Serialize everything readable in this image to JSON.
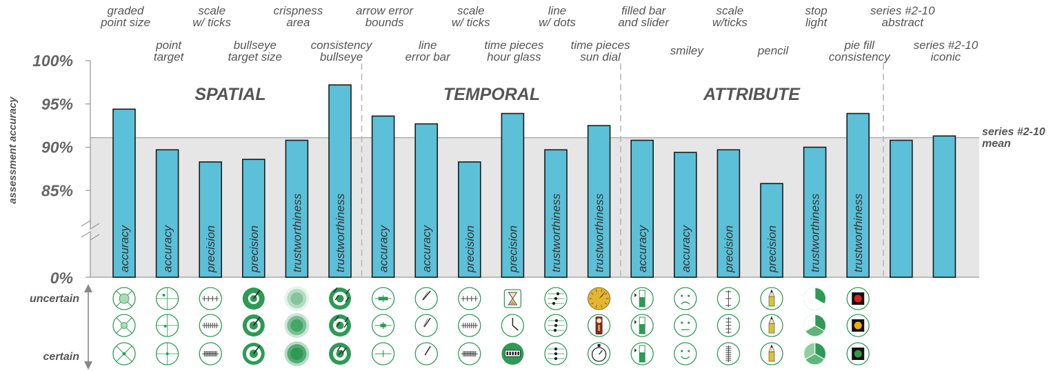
{
  "chart_data": {
    "type": "bar",
    "ylabel": "assessment accuracy",
    "y_ticks": [
      "100%",
      "95%",
      "90%",
      "85%",
      "0%"
    ],
    "ylim": [
      80,
      100
    ],
    "axis_break": true,
    "sections": [
      "SPATIAL",
      "TEMPORAL",
      "ATTRIBUTE"
    ],
    "mean": {
      "value": 91.1,
      "label_lines": [
        "series #2-10",
        "mean"
      ]
    },
    "row_labels": {
      "top": "uncertain",
      "bottom": "certain"
    },
    "bars": [
      {
        "top": [
          "graded",
          "point size"
        ],
        "value": 94.4,
        "metric": "accuracy",
        "section": "SPATIAL"
      },
      {
        "top": [
          "point",
          "target"
        ],
        "value": 89.7,
        "metric": "accuracy",
        "section": "SPATIAL"
      },
      {
        "top": [
          "scale",
          "w/ ticks"
        ],
        "value": 88.3,
        "metric": "precision",
        "section": "SPATIAL"
      },
      {
        "top": [
          "bullseye",
          "target size"
        ],
        "value": 88.6,
        "metric": "precision",
        "section": "SPATIAL"
      },
      {
        "top": [
          "crispness",
          "area"
        ],
        "value": 90.8,
        "metric": "trustworthiness",
        "section": "SPATIAL"
      },
      {
        "top": [
          "consistency",
          "bullseye"
        ],
        "value": 97.2,
        "metric": "trustworthiness",
        "section": "SPATIAL"
      },
      {
        "top": [
          "arrow error",
          "bounds"
        ],
        "value": 93.6,
        "metric": "accuracy",
        "section": "TEMPORAL"
      },
      {
        "top": [
          "line",
          "error bar"
        ],
        "value": 92.7,
        "metric": "accuracy",
        "section": "TEMPORAL"
      },
      {
        "top": [
          "scale",
          "w/ ticks"
        ],
        "value": 88.3,
        "metric": "precision",
        "section": "TEMPORAL"
      },
      {
        "top": [
          "time pieces",
          "hour glass"
        ],
        "value": 93.9,
        "metric": "precision",
        "section": "TEMPORAL"
      },
      {
        "top": [
          "line",
          "w/ dots"
        ],
        "value": 89.7,
        "metric": "trustworthiness",
        "section": "TEMPORAL"
      },
      {
        "top": [
          "time pieces",
          "sun dial"
        ],
        "value": 92.5,
        "metric": "trustworthiness",
        "section": "TEMPORAL"
      },
      {
        "top": [
          "filled bar",
          "and slider"
        ],
        "value": 90.8,
        "metric": "accuracy",
        "section": "ATTRIBUTE"
      },
      {
        "top": [
          "smiley"
        ],
        "value": 89.4,
        "metric": "accuracy",
        "section": "ATTRIBUTE"
      },
      {
        "top": [
          "scale",
          "w/ticks"
        ],
        "value": 89.7,
        "metric": "precision",
        "section": "ATTRIBUTE"
      },
      {
        "top": [
          "pencil"
        ],
        "value": 85.8,
        "metric": "precision",
        "section": "ATTRIBUTE"
      },
      {
        "top": [
          "stop",
          "light"
        ],
        "value": 90.0,
        "metric": "trustworthiness",
        "section": "ATTRIBUTE"
      },
      {
        "top": [
          "pie fill",
          "consistency"
        ],
        "value": 93.9,
        "metric": "trustworthiness",
        "section": "ATTRIBUTE"
      },
      {
        "top": [
          "series #2-10",
          "abstract"
        ],
        "value": 90.8,
        "metric": "",
        "section": ""
      },
      {
        "top": [
          "series #2-10",
          "iconic"
        ],
        "value": 91.3,
        "metric": "",
        "section": ""
      }
    ],
    "icons": [
      [
        "graded-point-icon",
        "graded-point-icon",
        "graded-point-icon"
      ],
      [
        "point-target-icon",
        "point-target-icon",
        "point-target-icon"
      ],
      [
        "scale-ticks-icon",
        "scale-ticks-icon",
        "scale-ticks-icon"
      ],
      [
        "bullseye-icon",
        "bullseye-icon",
        "bullseye-icon"
      ],
      [
        "blurred-area-icon",
        "blurred-area-icon",
        "solid-area-icon"
      ],
      [
        "scattered-bullseye-icon",
        "scattered-bullseye-icon",
        "scattered-bullseye-icon"
      ],
      [
        "arrow-bounds-icon",
        "arrow-bounds-icon",
        "arrow-bounds-icon"
      ],
      [
        "line-error-icon",
        "line-error-icon",
        "line-error-icon"
      ],
      [
        "scale-ticks-icon",
        "scale-ticks-icon",
        "scale-ticks-icon"
      ],
      [
        "hourglass-icon",
        "clock-icon",
        "digital-clock-icon"
      ],
      [
        "line-dots-icon",
        "line-dots-icon",
        "line-dots-icon"
      ],
      [
        "sundial-icon",
        "grandfather-clock-icon",
        "stopwatch-icon"
      ],
      [
        "filled-bar-icon",
        "filled-bar-icon",
        "filled-bar-icon"
      ],
      [
        "sad-face-icon",
        "neutral-face-icon",
        "happy-face-icon"
      ],
      [
        "vertical-scale-icon",
        "vertical-scale-icon",
        "vertical-scale-icon"
      ],
      [
        "pencil-icon",
        "pencil-icon",
        "pencil-icon"
      ],
      [
        "pie-one-third-icon",
        "pie-two-thirds-icon",
        "pie-full-icon"
      ],
      [
        "stop-light-red-icon",
        "stop-light-yellow-icon",
        "stop-light-green-icon"
      ]
    ],
    "colors": {
      "bar": "#5bc0d8",
      "bar_stroke": "#1a1a1a",
      "band": "#e6e6e6",
      "icon_green": "#2e9a55",
      "icon_light": "#a8dcb4"
    }
  }
}
